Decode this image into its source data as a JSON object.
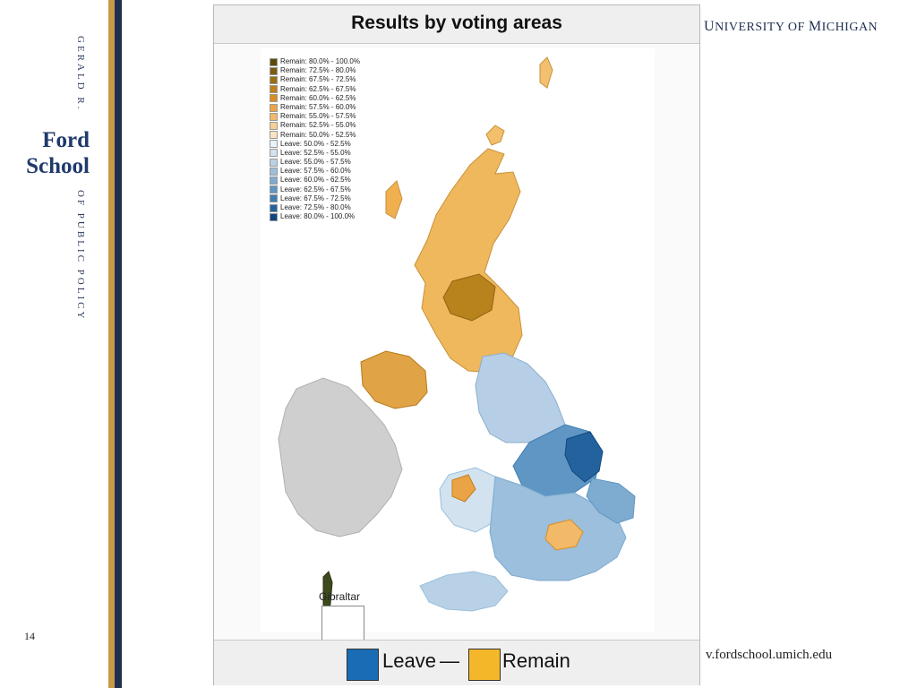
{
  "branding": {
    "vertical_top": "GERALD R.",
    "logo_line1": "Ford",
    "logo_line2": "School",
    "vertical_bottom": "OF PUBLIC POLICY",
    "university_first_letter": "U",
    "university_rest": "NIVERSITY OF ",
    "university_m": "M",
    "university_end": "ICHIGAN",
    "url": "v.fordschool.umich.edu"
  },
  "slide": {
    "page_number": "14"
  },
  "map": {
    "title": "Results by voting areas",
    "legend": [
      {
        "label": "Remain: 80.0% - 100.0%",
        "color": "#5a4a06"
      },
      {
        "label": "Remain: 72.5% - 80.0%",
        "color": "#7a5c0c"
      },
      {
        "label": "Remain: 67.5% - 72.5%",
        "color": "#9a6e12"
      },
      {
        "label": "Remain: 62.5% - 67.5%",
        "color": "#c07f1a"
      },
      {
        "label": "Remain: 60.0% - 62.5%",
        "color": "#d98e22"
      },
      {
        "label": "Remain: 57.5% - 60.0%",
        "color": "#eba445"
      },
      {
        "label": "Remain: 55.0% - 57.5%",
        "color": "#f1b968"
      },
      {
        "label": "Remain: 52.5% - 55.0%",
        "color": "#f6cf92"
      },
      {
        "label": "Remain: 50.0% - 52.5%",
        "color": "#fae4bd"
      },
      {
        "label": "Leave: 50.0% - 52.5%",
        "color": "#eaf1f8"
      },
      {
        "label": "Leave: 52.5% - 55.0%",
        "color": "#d2e2ef"
      },
      {
        "label": "Leave: 55.0% - 57.5%",
        "color": "#b8d1e6"
      },
      {
        "label": "Leave: 57.5% - 60.0%",
        "color": "#9bbfdc"
      },
      {
        "label": "Leave: 60.0% - 62.5%",
        "color": "#7eabd0"
      },
      {
        "label": "Leave: 62.5% - 67.5%",
        "color": "#5f96c3"
      },
      {
        "label": "Leave: 67.5% - 72.5%",
        "color": "#3f7db3"
      },
      {
        "label": "Leave: 72.5% - 80.0%",
        "color": "#24629d"
      },
      {
        "label": "Leave: 80.0% - 100.0%",
        "color": "#0f4680"
      }
    ],
    "inset_label": "Gibraltar",
    "bottom_legend": {
      "leave_label": "Leave",
      "dash": "—",
      "remain_label": "Remain",
      "leave_color": "#1a6cb5",
      "remain_color": "#f5b72a"
    }
  }
}
